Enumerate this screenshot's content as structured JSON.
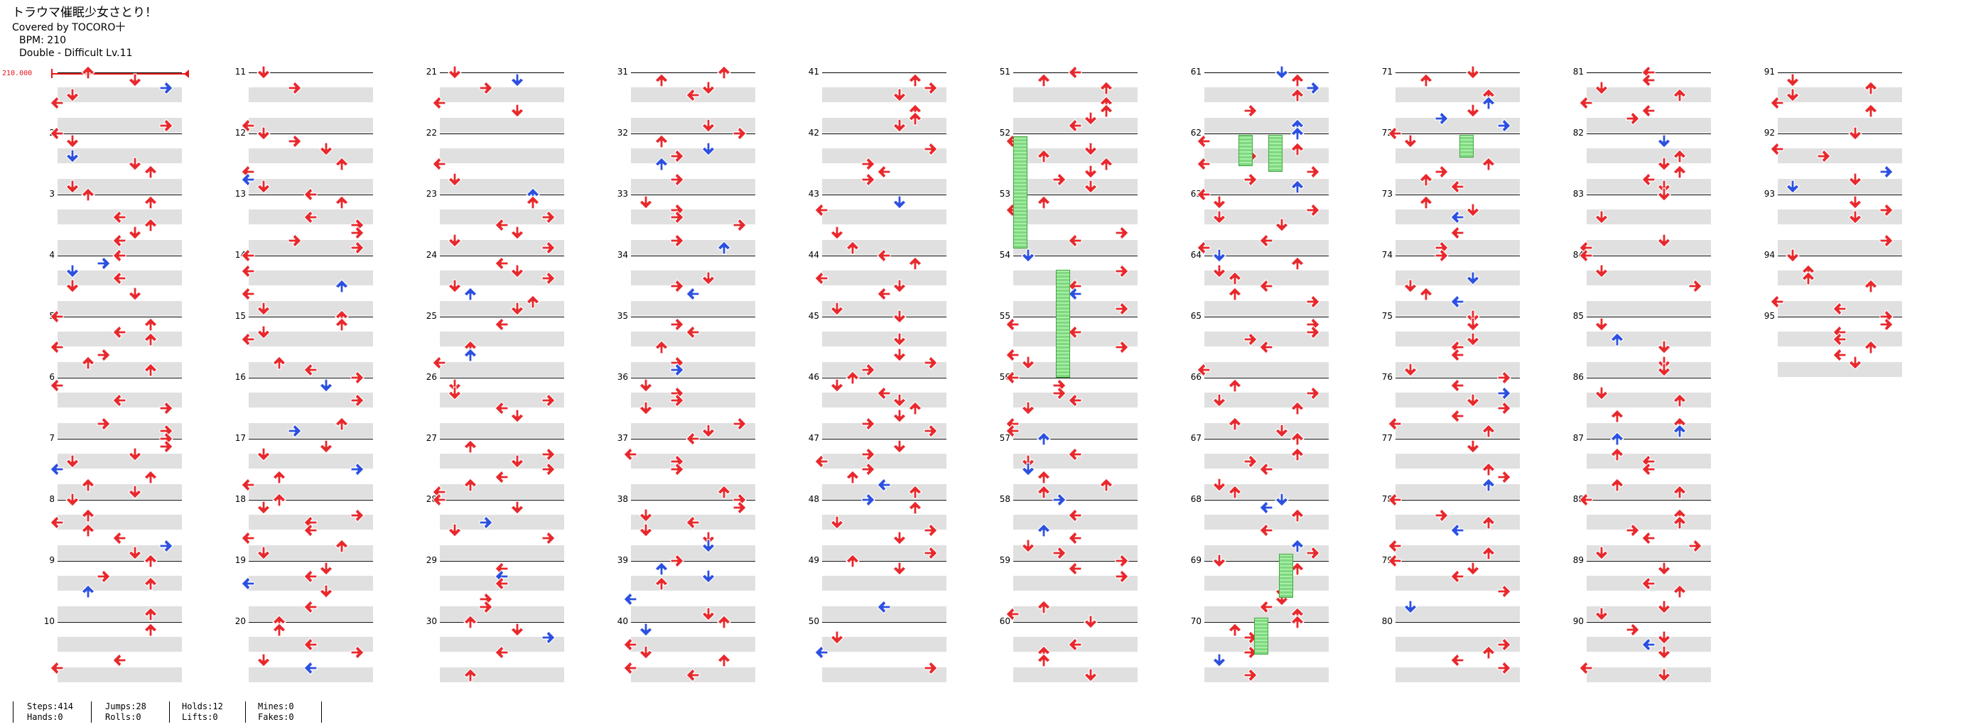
{
  "header": {
    "title": "トラウマ催眠少女さとり！",
    "artist": "Covered by TOCORO十",
    "bpm": "BPM: 210",
    "chart": "Double - Difficult Lv.11"
  },
  "bpm_marker": {
    "label": "210.000"
  },
  "measures": [
    "",
    "2",
    "3",
    "4",
    "5",
    "6",
    "7",
    "8",
    "9",
    "10",
    "11",
    "12",
    "13",
    "14",
    "15",
    "16",
    "17",
    "18",
    "19",
    "20",
    "21",
    "22",
    "23",
    "24",
    "25",
    "26",
    "27",
    "28",
    "29",
    "30",
    "31",
    "32",
    "33",
    "34",
    "35",
    "36",
    "37",
    "38",
    "39",
    "40",
    "41",
    "42",
    "43",
    "44",
    "45",
    "46",
    "47",
    "48",
    "49",
    "50",
    "51",
    "52",
    "53",
    "54",
    "55",
    "56",
    "57",
    "58",
    "59",
    "60",
    "61",
    "62",
    "63",
    "64",
    "65",
    "66",
    "67",
    "68",
    "69",
    "70",
    "71",
    "72",
    "73",
    "74",
    "75",
    "76",
    "77",
    "78",
    "79",
    "80",
    "81",
    "82",
    "83",
    "84",
    "85",
    "86",
    "87",
    "88",
    "89",
    "90",
    "91",
    "92",
    "93",
    "94",
    "95"
  ],
  "stats": {
    "steps": "Steps:414",
    "hands": "Hands:0",
    "jumps": "Jumps:28",
    "rolls": "Rolls:0",
    "holds": "Holds:12",
    "lifts": "Lifts:0",
    "mines": "Mines:0",
    "fakes": "Fakes:0"
  },
  "colors": {
    "red_note": "#e8282c",
    "blue_note": "#2c50e0",
    "hold": "#7fd87f",
    "bpm": "#e8141c",
    "mine": "#f2d22a"
  }
}
